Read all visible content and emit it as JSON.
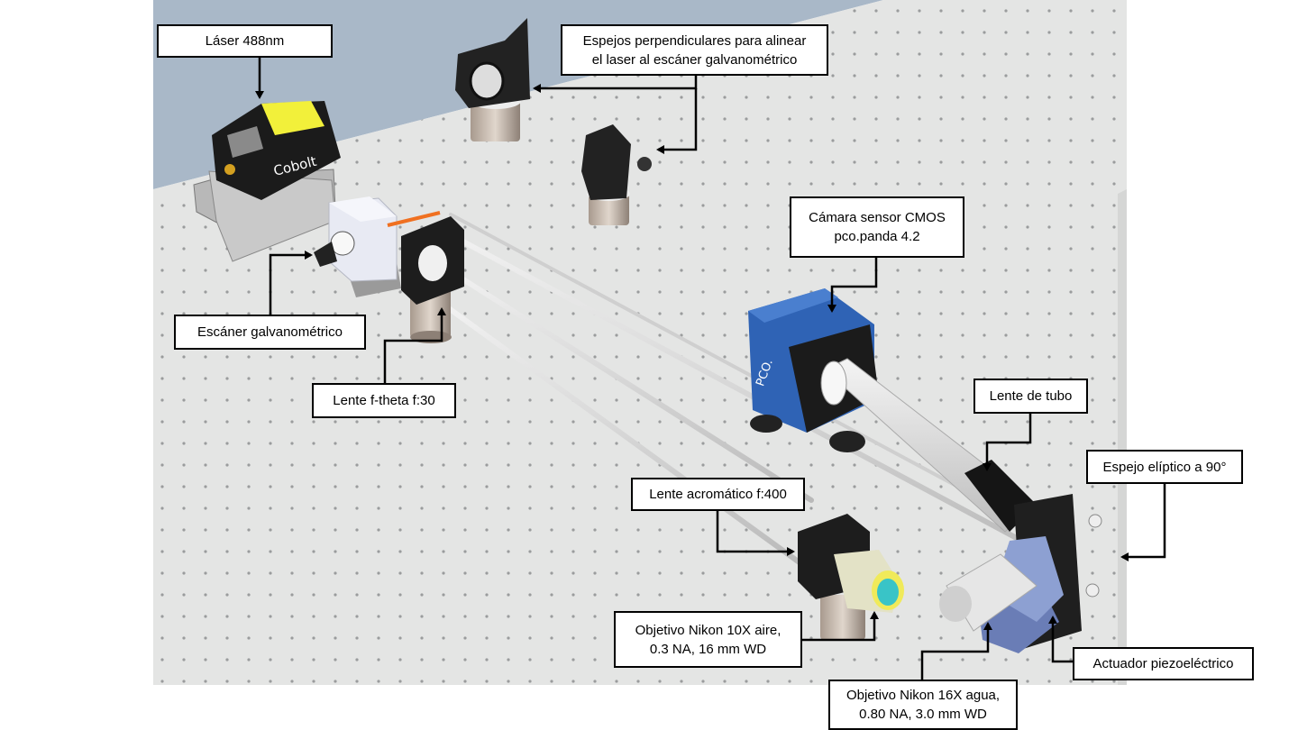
{
  "labels": {
    "laser": "Láser 488nm",
    "mirrors": "Espejos perpendiculares para alinear\nel laser al escáner galvanométrico",
    "galvo": "Escáner galvanométrico",
    "ftheta": "Lente f-theta f:30",
    "camera": "Cámara sensor CMOS\npco.panda 4.2",
    "tube_lens": "Lente de tubo",
    "elliptic_mirror": "Espejo elíptico a 90°",
    "achromatic": "Lente acromático f:400",
    "obj10x": "Objetivo Nikon 10X aire,\n0.3 NA, 16 mm WD",
    "piezo": "Actuador piezoeléctrico",
    "obj16x": "Objetivo Nikon 16X agua,\n0.80 NA, 3.0 mm WD"
  },
  "device_text": {
    "laser_brand": "Cobolt",
    "camera_brand": "PCO."
  },
  "colors": {
    "table_top": "#e4e5e4",
    "background_sky": "#a9b8c8",
    "laser_yellow": "#f2f03a",
    "camera_blue": "#2f63b5",
    "beam_orange": "#f07020",
    "arrow": "#000000"
  }
}
